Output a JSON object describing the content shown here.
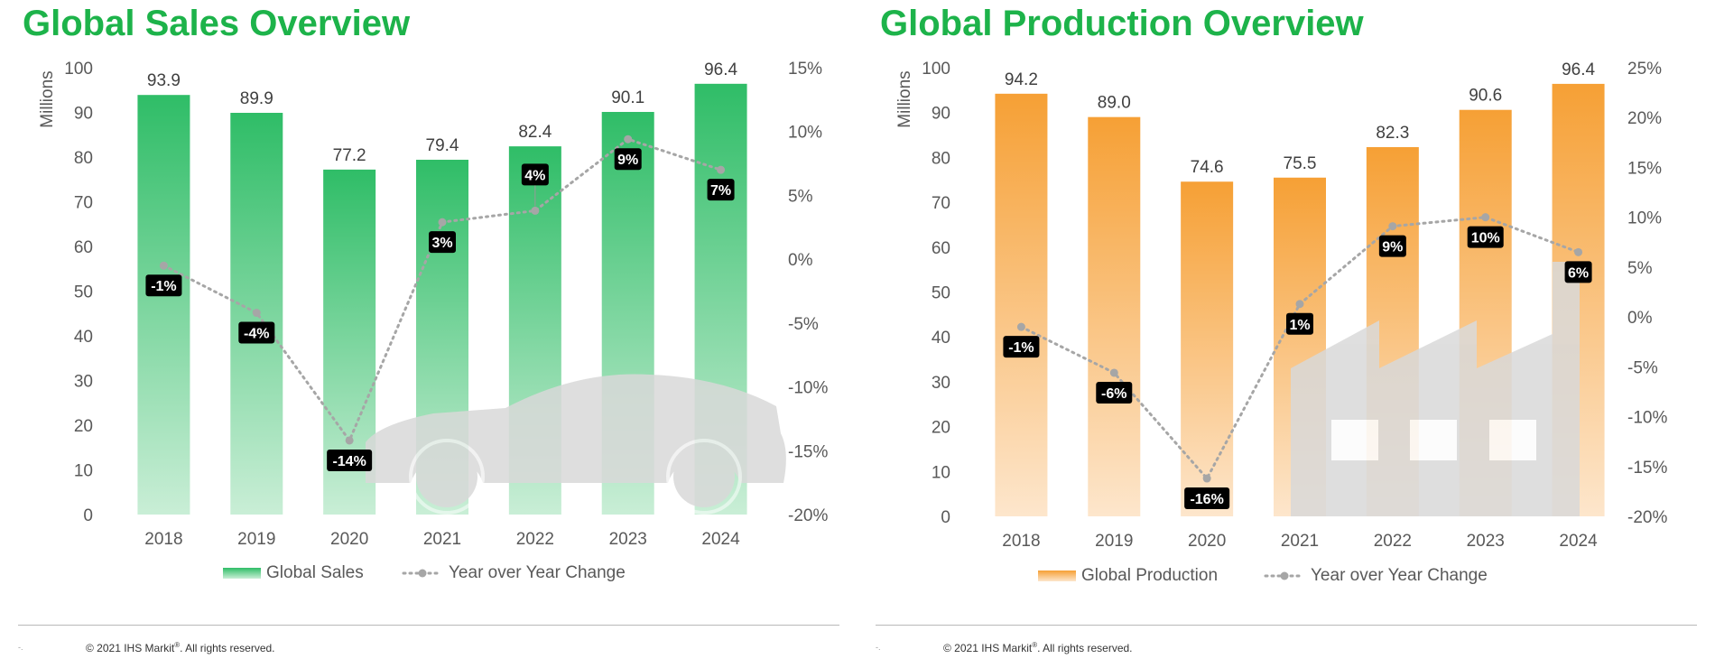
{
  "colors": {
    "title": "#1db34a",
    "sales_bar_top": "#2fbd67",
    "sales_bar_bottom": "#c9eed6",
    "production_bar_top": "#f6a035",
    "production_bar_bottom": "#fde6cc",
    "line": "#a6a6a6",
    "silhouette": "#d9d9d9",
    "axis_text": "#595959"
  },
  "panels": [
    {
      "id": "sales",
      "title": "Global Sales Overview",
      "silhouette_icon": "car-icon",
      "footer": {
        "copyright": "© 2021 IHS Markit",
        "rights": ". All rights reserved.",
        "mark": "®",
        "corner": "-."
      }
    },
    {
      "id": "production",
      "title": "Global Production Overview",
      "silhouette_icon": "factory-icon",
      "footer": {
        "copyright": "© 2021 IHS Markit",
        "rights": ". All rights reserved.",
        "mark": "®",
        "corner": "-."
      }
    }
  ],
  "chart_data": [
    {
      "type": "bar",
      "title": "Global Sales Overview",
      "categories": [
        "2018",
        "2019",
        "2020",
        "2021",
        "2022",
        "2023",
        "2024"
      ],
      "series": [
        {
          "name": "Global Sales",
          "type": "bar",
          "axis": "left",
          "values": [
            93.9,
            89.9,
            77.2,
            79.4,
            82.4,
            90.1,
            96.4
          ],
          "labels": [
            "93.9",
            "89.9",
            "77.2",
            "79.4",
            "82.4",
            "90.1",
            "96.4"
          ]
        },
        {
          "name": "Year over Year Change",
          "type": "line",
          "axis": "right",
          "values": [
            -0.5,
            -4.2,
            -14.2,
            2.9,
            3.8,
            9.4,
            7.0
          ],
          "labels": [
            "-1%",
            "-4%",
            "-14%",
            "3%",
            "4%",
            "9%",
            "7%"
          ]
        }
      ],
      "ylabel": "Millions",
      "ylim": [
        0,
        100
      ],
      "y_ticks": [
        "0",
        "10",
        "20",
        "30",
        "40",
        "50",
        "60",
        "70",
        "80",
        "90",
        "100"
      ],
      "y2lim": [
        -20,
        15
      ],
      "y2_ticks": [
        "-20%",
        "-15%",
        "-10%",
        "-5%",
        "0%",
        "5%",
        "10%",
        "15%"
      ],
      "legend": [
        "Global Sales",
        "Year over Year Change"
      ],
      "legend_position": "bottom"
    },
    {
      "type": "bar",
      "title": "Global Production Overview",
      "categories": [
        "2018",
        "2019",
        "2020",
        "2021",
        "2022",
        "2023",
        "2024"
      ],
      "series": [
        {
          "name": "Global Production",
          "type": "bar",
          "axis": "left",
          "values": [
            94.2,
            89.0,
            74.6,
            75.5,
            82.3,
            90.6,
            96.4
          ],
          "labels": [
            "94.2",
            "89.0",
            "74.6",
            "75.5",
            "82.3",
            "90.6",
            "96.4"
          ]
        },
        {
          "name": "Year over Year Change",
          "type": "line",
          "axis": "right",
          "values": [
            -1.0,
            -5.6,
            -16.2,
            1.3,
            9.1,
            10.0,
            6.5
          ],
          "labels": [
            "-1%",
            "-6%",
            "-16%",
            "1%",
            "9%",
            "10%",
            "6%"
          ]
        }
      ],
      "ylabel": "Millions",
      "ylim": [
        0,
        100
      ],
      "y_ticks": [
        "0",
        "10",
        "20",
        "30",
        "40",
        "50",
        "60",
        "70",
        "80",
        "90",
        "100"
      ],
      "y2lim": [
        -20,
        25
      ],
      "y2_ticks": [
        "-20%",
        "-15%",
        "-10%",
        "-5%",
        "0%",
        "5%",
        "10%",
        "15%",
        "20%",
        "25%"
      ],
      "legend": [
        "Global Production",
        "Year over Year Change"
      ],
      "legend_position": "bottom"
    }
  ]
}
